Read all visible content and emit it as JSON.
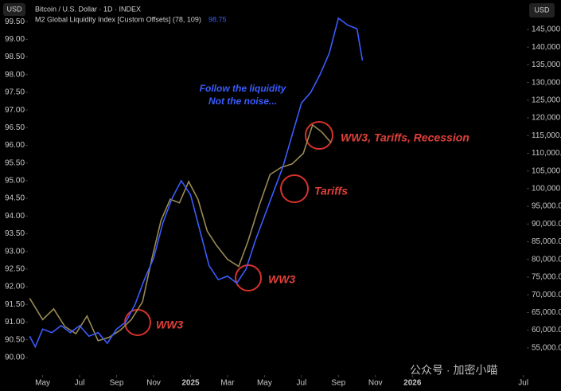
{
  "chart_data": {
    "type": "line",
    "title": "Bitcoin / U.S. Dollar · 1D · INDEX",
    "last_value_label": "98.75",
    "left_unit": "USD",
    "right_unit": "USD",
    "annotations": [
      "Follow the liquidity",
      "Not the noise...",
      "WW3",
      "WW3",
      "Tariffs",
      "WW3, Tariffs, Recession"
    ],
    "watermark": "公众号 · 加密小喵",
    "xlim": [
      3.2,
      30.1
    ],
    "xticks": [
      {
        "value": 4,
        "label": "May"
      },
      {
        "value": 6,
        "label": "Jul"
      },
      {
        "value": 8,
        "label": "Sep"
      },
      {
        "value": 10,
        "label": "Nov"
      },
      {
        "value": 12,
        "label": "2025"
      },
      {
        "value": 14,
        "label": "Mar"
      },
      {
        "value": 16,
        "label": "May"
      },
      {
        "value": 18,
        "label": "Jul"
      },
      {
        "value": 20,
        "label": "Sep"
      },
      {
        "value": 22,
        "label": "Nov"
      },
      {
        "value": 24,
        "label": "2026"
      },
      {
        "value": 30,
        "label": "Jul"
      }
    ],
    "ylim": [
      89.5,
      100
    ],
    "yticks": [
      {
        "value": 90,
        "label": "90.00"
      },
      {
        "value": 90.5,
        "label": "90.50"
      },
      {
        "value": 91,
        "label": "91.00"
      },
      {
        "value": 91.5,
        "label": "91.50"
      },
      {
        "value": 92,
        "label": "92.00"
      },
      {
        "value": 92.5,
        "label": "92.50"
      },
      {
        "value": 93,
        "label": "93.00"
      },
      {
        "value": 93.5,
        "label": "93.50"
      },
      {
        "value": 94,
        "label": "94.00"
      },
      {
        "value": 94.5,
        "label": "94.50"
      },
      {
        "value": 95,
        "label": "95.00"
      },
      {
        "value": 95.5,
        "label": "95.50"
      },
      {
        "value": 96,
        "label": "96.00"
      },
      {
        "value": 96.5,
        "label": "96.50"
      },
      {
        "value": 97,
        "label": "97.00"
      },
      {
        "value": 97.5,
        "label": "97.50"
      },
      {
        "value": 98,
        "label": "98.00"
      },
      {
        "value": 98.5,
        "label": "98.50"
      },
      {
        "value": 99,
        "label": "99.00"
      },
      {
        "value": 99.5,
        "label": "99.50"
      }
    ],
    "y2lim": [
      47300,
      152200
    ],
    "y2ticks": [
      {
        "value": 55000,
        "label": "55,000.00"
      },
      {
        "value": 60000,
        "label": "60,000.00"
      },
      {
        "value": 65000,
        "label": "65,000.00"
      },
      {
        "value": 70000,
        "label": "70,000.00"
      },
      {
        "value": 75000,
        "label": "75,000.00"
      },
      {
        "value": 80000,
        "label": "80,000.00"
      },
      {
        "value": 85000,
        "label": "85,000.00"
      },
      {
        "value": 90000,
        "label": "90,000.00"
      },
      {
        "value": 95000,
        "label": "95,000.00"
      },
      {
        "value": 100000,
        "label": "100,000.00"
      },
      {
        "value": 105000,
        "label": "105,000.00"
      },
      {
        "value": 110000,
        "label": "110,000.00"
      },
      {
        "value": 115000,
        "label": "115,000.00"
      },
      {
        "value": 120000,
        "label": "120,000.00"
      },
      {
        "value": 125000,
        "label": "125,000.00"
      },
      {
        "value": 130000,
        "label": "130,000.00"
      },
      {
        "value": 135000,
        "label": "135,000.00"
      },
      {
        "value": 140000,
        "label": "140,000.00"
      },
      {
        "value": 145000,
        "label": "145,000.00"
      }
    ],
    "series": [
      {
        "name": "M2 Global Liquidity Index [Custom Offsets] (78, 109)",
        "color": "#3a5cff",
        "x": [
          3.3,
          3.6,
          4.0,
          4.5,
          5.0,
          5.5,
          6.0,
          6.5,
          7.0,
          7.5,
          8.0,
          8.5,
          9.0,
          9.5,
          10.0,
          10.5,
          11.0,
          11.5,
          12.0,
          12.5,
          13.0,
          13.5,
          14.0,
          14.5,
          15.0,
          15.5,
          16.0,
          16.5,
          17.0,
          17.5,
          18.0,
          18.5,
          19.0,
          19.5,
          20.0,
          20.5,
          21.0,
          21.3
        ],
        "values": [
          90.6,
          90.3,
          90.8,
          90.7,
          90.9,
          90.7,
          90.9,
          90.6,
          90.7,
          90.4,
          90.8,
          91.0,
          91.5,
          92.2,
          92.8,
          93.8,
          94.5,
          95.0,
          94.6,
          93.6,
          92.6,
          92.2,
          92.3,
          92.1,
          92.5,
          93.3,
          94.0,
          94.7,
          95.4,
          96.3,
          97.2,
          97.5,
          98.0,
          98.6,
          99.6,
          99.4,
          99.3,
          98.4
        ]
      },
      {
        "name": "Bitcoin",
        "color": "#9a8a55",
        "axis": "y2",
        "x": [
          3.3,
          4.0,
          4.6,
          5.2,
          5.8,
          6.4,
          7.0,
          7.6,
          8.2,
          8.8,
          9.4,
          9.9,
          10.4,
          10.9,
          11.4,
          11.9,
          12.4,
          12.9,
          13.4,
          14.0,
          14.6,
          15.1,
          15.7,
          16.3,
          16.9,
          17.5,
          18.1,
          18.6,
          19.1,
          19.6
        ],
        "values": [
          69000,
          63000,
          66000,
          61000,
          59000,
          64000,
          57000,
          58000,
          60000,
          63000,
          68000,
          80000,
          91000,
          97000,
          96000,
          102000,
          97000,
          88000,
          84000,
          80000,
          78000,
          85000,
          95000,
          104000,
          106000,
          107000,
          110000,
          118000,
          116000,
          113000
        ]
      }
    ]
  }
}
